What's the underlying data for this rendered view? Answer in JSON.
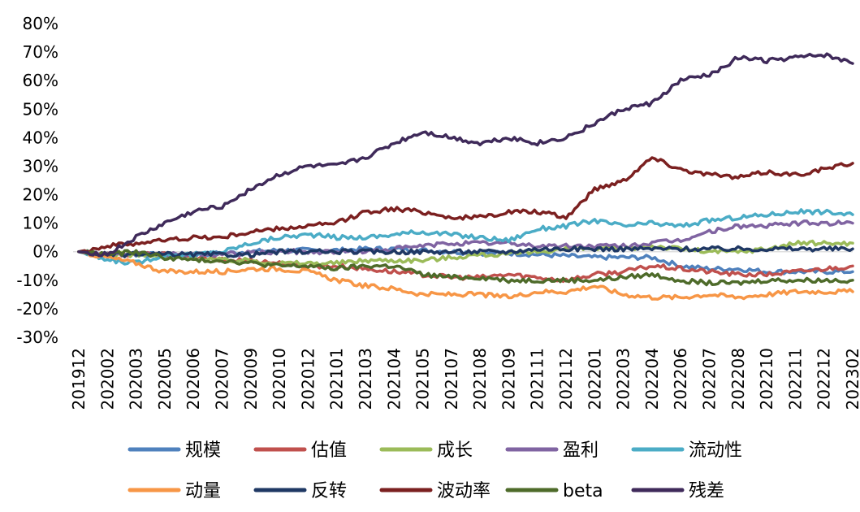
{
  "chart_data": {
    "type": "line",
    "title": "",
    "xlabel": "",
    "ylabel": "",
    "ylim": [
      -30,
      80
    ],
    "y_ticks": [
      "80%",
      "70%",
      "60%",
      "50%",
      "40%",
      "30%",
      "20%",
      "10%",
      "0%",
      "-10%",
      "-20%",
      "-30%"
    ],
    "y_tick_values": [
      80,
      70,
      60,
      50,
      40,
      30,
      20,
      10,
      0,
      -10,
      -20,
      -30
    ],
    "categories": [
      "201912",
      "202002",
      "202003",
      "202005",
      "202006",
      "202007",
      "202009",
      "202010",
      "202012",
      "202101",
      "202103",
      "202104",
      "202105",
      "202107",
      "202108",
      "202109",
      "202111",
      "202112",
      "202201",
      "202203",
      "202204",
      "202206",
      "202207",
      "202208",
      "202210",
      "202211",
      "202212",
      "202302"
    ],
    "grid": false,
    "legend_position": "bottom",
    "series": [
      {
        "name": "规模",
        "color": "#4F81BD",
        "values": [
          0,
          -1,
          -1,
          -1,
          -1,
          -0.5,
          0,
          0.5,
          0.5,
          0.5,
          1,
          1,
          0.5,
          0,
          -0.5,
          -0.5,
          -1,
          -1.5,
          -2,
          -2,
          -2,
          -5,
          -6,
          -6,
          -7,
          -7,
          -7,
          -7
        ]
      },
      {
        "name": "估值",
        "color": "#C0504D",
        "values": [
          0,
          -1,
          -1,
          -1,
          -2,
          -3,
          -3,
          -4,
          -5,
          -5,
          -6,
          -7,
          -8,
          -9,
          -9,
          -8,
          -9,
          -10,
          -8,
          -7,
          -5,
          -6,
          -7,
          -8,
          -8,
          -7,
          -6,
          -5
        ]
      },
      {
        "name": "成长",
        "color": "#9BBB59",
        "values": [
          0,
          -1,
          -1,
          -2,
          -2,
          -3,
          -3,
          -4,
          -4,
          -4,
          -3,
          -3,
          -3,
          -2,
          -1,
          -1,
          0,
          1,
          1,
          1,
          2,
          1,
          0,
          0,
          1,
          3,
          3,
          3
        ]
      },
      {
        "name": "盈利",
        "color": "#8064A2",
        "values": [
          0,
          -1,
          -1,
          -1,
          -1,
          -1,
          -0.5,
          0,
          0,
          0,
          0,
          1,
          2,
          3,
          3,
          3,
          2,
          2,
          2,
          2,
          3,
          4,
          7,
          9,
          9,
          10,
          10,
          10
        ]
      },
      {
        "name": "流动性",
        "color": "#4BACC6",
        "values": [
          0,
          -3,
          -4,
          -1,
          -1,
          0,
          3,
          5,
          6,
          5,
          5,
          6,
          7,
          6,
          5,
          4,
          8,
          9,
          11,
          9,
          10,
          9,
          11,
          12,
          13,
          14,
          14,
          13
        ]
      },
      {
        "name": "动量",
        "color": "#F79646",
        "values": [
          0,
          -2,
          -4,
          -7,
          -7,
          -7,
          -6,
          -6,
          -7,
          -10,
          -12,
          -13,
          -15,
          -15,
          -15,
          -16,
          -14,
          -14,
          -12,
          -15,
          -16,
          -16,
          -15,
          -16,
          -15,
          -14,
          -14,
          -14
        ]
      },
      {
        "name": "反转",
        "color": "#1F3864",
        "values": [
          0,
          -1,
          -1,
          -1,
          -1,
          -1,
          -1,
          0,
          0,
          0,
          0,
          0,
          0,
          0,
          0,
          0,
          1,
          1,
          1,
          1,
          1,
          1,
          1,
          1,
          1,
          1,
          1,
          1
        ]
      },
      {
        "name": "波动率",
        "color": "#7B2020",
        "values": [
          0,
          2,
          3,
          4,
          5,
          5,
          7,
          8,
          9,
          10,
          14,
          15,
          14,
          12,
          12,
          14,
          14,
          12,
          22,
          25,
          33,
          29,
          27,
          26,
          28,
          27,
          29,
          31
        ]
      },
      {
        "name": "beta",
        "color": "#4E6B2A",
        "values": [
          0,
          -1,
          0,
          -2,
          -3,
          -3,
          -4,
          -5,
          -5,
          -6,
          -5,
          -5,
          -8,
          -9,
          -9,
          -10,
          -10,
          -10,
          -10,
          -9,
          -8,
          -10,
          -11,
          -11,
          -10,
          -10,
          -10,
          -10
        ]
      },
      {
        "name": "残差",
        "color": "#3F2A5A",
        "values": [
          0,
          -1,
          5,
          10,
          14,
          16,
          22,
          27,
          30,
          30,
          33,
          38,
          42,
          40,
          38,
          40,
          38,
          40,
          45,
          50,
          52,
          60,
          62,
          68,
          67,
          68,
          69,
          66
        ]
      }
    ]
  }
}
